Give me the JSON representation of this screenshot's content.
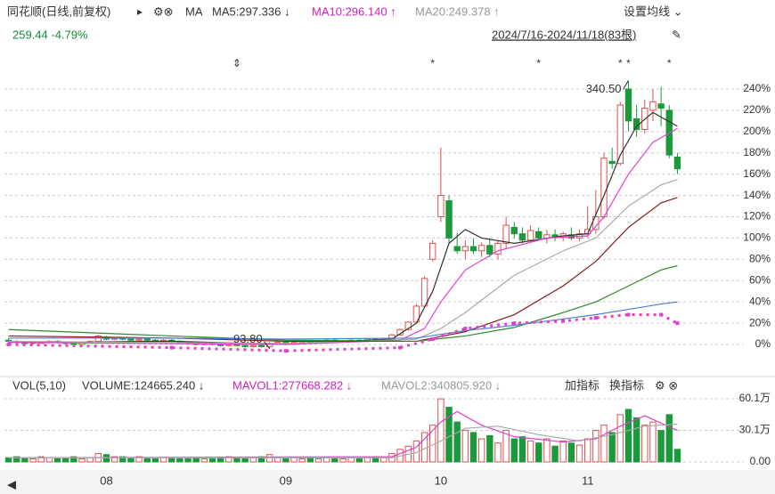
{
  "header": {
    "title": "同花顺(日线,前复权)",
    "arrow": "▸",
    "ma": "MA",
    "ma5": "MA5:297.336 ↓",
    "ma10": "MA10:296.140 ↑",
    "ma20": "MA20:249.378 ↑",
    "settings": "设置均线 ⌄",
    "price": "259.44 -4.79%",
    "range": "2024/7/16-2024/11/18(83根)"
  },
  "volume_header": {
    "vol": "VOL(5,10)",
    "volume": "VOLUME:124665.240 ↓",
    "mavol1": "MAVOL1:277668.282 ↓",
    "mavol2": "MAVOL2:340805.920 ↓",
    "add": "加指标",
    "change": "换指标"
  },
  "chart_data": [
    {
      "type": "candlestick",
      "xlim": [
        -0.5,
        82.5
      ],
      "ylim": [
        0,
        240
      ],
      "yticks": [
        {
          "value": 0,
          "label": "0%"
        },
        {
          "value": 20,
          "label": "20%"
        },
        {
          "value": 40,
          "label": "40%"
        },
        {
          "value": 60,
          "label": "60%"
        },
        {
          "value": 80,
          "label": "80%"
        },
        {
          "value": 100,
          "label": "100%"
        },
        {
          "value": 120,
          "label": "120%"
        },
        {
          "value": 140,
          "label": "140%"
        },
        {
          "value": 160,
          "label": "160%"
        },
        {
          "value": 180,
          "label": "180%"
        },
        {
          "value": 200,
          "label": "200%"
        },
        {
          "value": 220,
          "label": "220%"
        },
        {
          "value": 240,
          "label": "240%"
        }
      ],
      "grid": true,
      "up_color": "#e0504f",
      "down_color": "#1b9a3c",
      "ohlc": [
        [
          4,
          6,
          2,
          3
        ],
        [
          3,
          4,
          1,
          2
        ],
        [
          2,
          3,
          0,
          1
        ],
        [
          1,
          3,
          0,
          2
        ],
        [
          2,
          3,
          1,
          2
        ],
        [
          2,
          4,
          1,
          3
        ],
        [
          3,
          4,
          1,
          2
        ],
        [
          2,
          3,
          0,
          1
        ],
        [
          1,
          2,
          -1,
          0
        ],
        [
          0,
          3,
          0,
          2
        ],
        [
          2,
          4,
          1,
          3
        ],
        [
          3,
          9,
          2,
          8
        ],
        [
          7,
          8,
          4,
          5
        ],
        [
          5,
          7,
          4,
          6
        ],
        [
          6,
          7,
          4,
          5
        ],
        [
          5,
          6,
          3,
          4
        ],
        [
          4,
          6,
          3,
          5
        ],
        [
          5,
          6,
          3,
          4
        ],
        [
          4,
          5,
          2,
          3
        ],
        [
          3,
          5,
          2,
          4
        ],
        [
          4,
          5,
          2,
          3
        ],
        [
          3,
          4,
          1,
          2
        ],
        [
          2,
          3,
          0,
          1
        ],
        [
          1,
          2,
          -1,
          0
        ],
        [
          0,
          2,
          -1,
          1
        ],
        [
          1,
          2,
          -1,
          0
        ],
        [
          0,
          1,
          -2,
          -1
        ],
        [
          -1,
          1,
          -2,
          0
        ],
        [
          0,
          1,
          -2,
          -1
        ],
        [
          -1,
          0,
          -3,
          -2
        ],
        [
          -2,
          0,
          -3,
          -1
        ],
        [
          -1,
          1,
          -3,
          -2
        ],
        [
          -2,
          2,
          -4,
          1
        ],
        [
          1,
          3,
          0,
          2
        ],
        [
          2,
          3,
          0,
          1
        ],
        [
          1,
          3,
          0,
          2
        ],
        [
          2,
          4,
          1,
          3
        ],
        [
          3,
          4,
          1,
          2
        ],
        [
          2,
          4,
          1,
          3
        ],
        [
          3,
          5,
          2,
          4
        ],
        [
          4,
          5,
          2,
          3
        ],
        [
          3,
          4,
          2,
          3
        ],
        [
          3,
          5,
          2,
          4
        ],
        [
          4,
          5,
          2,
          3
        ],
        [
          3,
          6,
          2,
          5
        ],
        [
          5,
          6,
          3,
          4
        ],
        [
          4,
          6,
          3,
          5
        ],
        [
          5,
          10,
          4,
          9
        ],
        [
          9,
          15,
          8,
          14
        ],
        [
          14,
          22,
          13,
          21
        ],
        [
          21,
          38,
          20,
          36
        ],
        [
          36,
          64,
          35,
          62
        ],
        [
          80,
          98,
          78,
          95
        ],
        [
          120,
          185,
          115,
          140
        ],
        [
          135,
          140,
          95,
          100
        ],
        [
          92,
          105,
          85,
          88
        ],
        [
          88,
          98,
          80,
          92
        ],
        [
          92,
          100,
          85,
          88
        ],
        [
          88,
          96,
          82,
          93
        ],
        [
          93,
          100,
          82,
          85
        ],
        [
          85,
          98,
          80,
          95
        ],
        [
          95,
          120,
          90,
          112
        ],
        [
          110,
          115,
          100,
          104
        ],
        [
          104,
          110,
          95,
          98
        ],
        [
          98,
          112,
          96,
          107
        ],
        [
          106,
          110,
          98,
          100
        ],
        [
          100,
          108,
          95,
          103
        ],
        [
          103,
          108,
          97,
          101
        ],
        [
          101,
          106,
          97,
          104
        ],
        [
          103,
          110,
          98,
          100
        ],
        [
          100,
          108,
          97,
          104
        ],
        [
          104,
          130,
          100,
          108
        ],
        [
          108,
          145,
          104,
          120
        ],
        [
          120,
          180,
          118,
          175
        ],
        [
          172,
          185,
          165,
          170
        ],
        [
          170,
          228,
          168,
          225
        ],
        [
          240,
          248,
          200,
          210
        ],
        [
          212,
          225,
          195,
          202
        ],
        [
          202,
          230,
          198,
          222
        ],
        [
          220,
          240,
          210,
          228
        ],
        [
          226,
          242,
          205,
          222
        ],
        [
          220,
          225,
          175,
          178
        ],
        [
          176,
          180,
          160,
          165
        ]
      ],
      "series": [
        {
          "color": "#333333",
          "x": [
            0,
            20,
            34,
            47,
            50,
            52,
            54,
            56,
            58,
            62,
            68,
            71,
            73,
            75,
            77,
            79,
            82
          ],
          "values": [
            2,
            3,
            0,
            5,
            20,
            50,
            95,
            108,
            100,
            95,
            102,
            104,
            140,
            178,
            205,
            218,
            205
          ]
        },
        {
          "color": "#e040d0",
          "x": [
            0,
            34,
            48,
            51,
            53,
            56,
            60,
            66,
            71,
            73,
            76,
            79,
            82
          ],
          "values": [
            2,
            0,
            4,
            15,
            40,
            70,
            88,
            100,
            102,
            120,
            160,
            190,
            203
          ]
        },
        {
          "color": "#aaaaaa",
          "x": [
            0,
            34,
            50,
            53,
            56,
            62,
            68,
            72,
            76,
            80,
            82
          ],
          "values": [
            3,
            1,
            5,
            15,
            30,
            65,
            88,
            100,
            130,
            150,
            155
          ]
        },
        {
          "color": "#8b1a1a",
          "x": [
            0,
            20,
            34,
            50,
            56,
            62,
            68,
            72,
            76,
            80,
            82
          ],
          "values": [
            8,
            6,
            3,
            3,
            12,
            28,
            55,
            78,
            110,
            133,
            138
          ]
        },
        {
          "color": "#2e8b2e",
          "x": [
            0,
            20,
            34,
            50,
            56,
            62,
            68,
            72,
            76,
            80,
            82
          ],
          "values": [
            14,
            8,
            4,
            3,
            8,
            16,
            30,
            40,
            55,
            70,
            74
          ]
        },
        {
          "color": "#4a7fd4",
          "x": [
            0,
            20,
            34,
            50,
            56,
            62,
            68,
            72,
            76,
            80,
            82
          ],
          "values": [
            6,
            6,
            5,
            6,
            13,
            18,
            24,
            28,
            33,
            38,
            40
          ]
        },
        {
          "color": "#e040d0",
          "style": "dots",
          "x": [
            0,
            20,
            34,
            48,
            52,
            56,
            62,
            68,
            72,
            76,
            80,
            82
          ],
          "values": [
            0,
            -3,
            -6,
            -3,
            5,
            15,
            20,
            22,
            25,
            28,
            28,
            20
          ]
        }
      ],
      "annotations": [
        {
          "text": "340.50",
          "x": 76,
          "y": 248
        },
        {
          "text": "93.80",
          "x": 32,
          "y": -4
        }
      ],
      "events": [
        {
          "label": "⇕",
          "x": 28
        },
        {
          "label": "*",
          "x": 52
        },
        {
          "label": "*",
          "x": 65
        },
        {
          "label": "*",
          "x": 75
        },
        {
          "label": "*",
          "x": 76
        },
        {
          "label": "*",
          "x": 81
        }
      ]
    },
    {
      "type": "bar",
      "xlim": [
        -0.5,
        82.5
      ],
      "ylim": [
        0,
        60.1
      ],
      "yticks": [
        {
          "value": 0,
          "label": "0.00"
        },
        {
          "value": 30.1,
          "label": "30.1万"
        },
        {
          "value": 60.1,
          "label": "60.1万"
        }
      ],
      "grid": true,
      "values": [
        4,
        5,
        4,
        3,
        5,
        4,
        3,
        4,
        5,
        3,
        4,
        8,
        7,
        5,
        5,
        4,
        5,
        4,
        3,
        4,
        4,
        3,
        3,
        4,
        3,
        3,
        4,
        5,
        4,
        3,
        4,
        5,
        7,
        4,
        3,
        4,
        3,
        4,
        3,
        4,
        3,
        3,
        4,
        3,
        4,
        5,
        4,
        8,
        12,
        15,
        20,
        28,
        35,
        60,
        52,
        38,
        30,
        28,
        22,
        25,
        18,
        30,
        22,
        24,
        20,
        18,
        22,
        15,
        20,
        18,
        16,
        22,
        30,
        35,
        28,
        45,
        50,
        42,
        35,
        38,
        30,
        45,
        12
      ],
      "series": [
        {
          "color": "#e040d0",
          "x": [
            0,
            47,
            50,
            53,
            55,
            58,
            62,
            68,
            72,
            75,
            78,
            82
          ],
          "values": [
            4,
            5,
            14,
            38,
            48,
            35,
            24,
            19,
            22,
            34,
            44,
            30
          ]
        },
        {
          "color": "#aaaaaa",
          "x": [
            0,
            47,
            50,
            53,
            56,
            60,
            65,
            70,
            74,
            78,
            82
          ],
          "values": [
            4,
            4,
            9,
            20,
            32,
            34,
            26,
            20,
            26,
            34,
            36
          ]
        }
      ],
      "xticks": [
        {
          "value": 12,
          "label": "08"
        },
        {
          "value": 34,
          "label": "09"
        },
        {
          "value": 53,
          "label": "10"
        },
        {
          "value": 71,
          "label": "11"
        }
      ]
    }
  ]
}
